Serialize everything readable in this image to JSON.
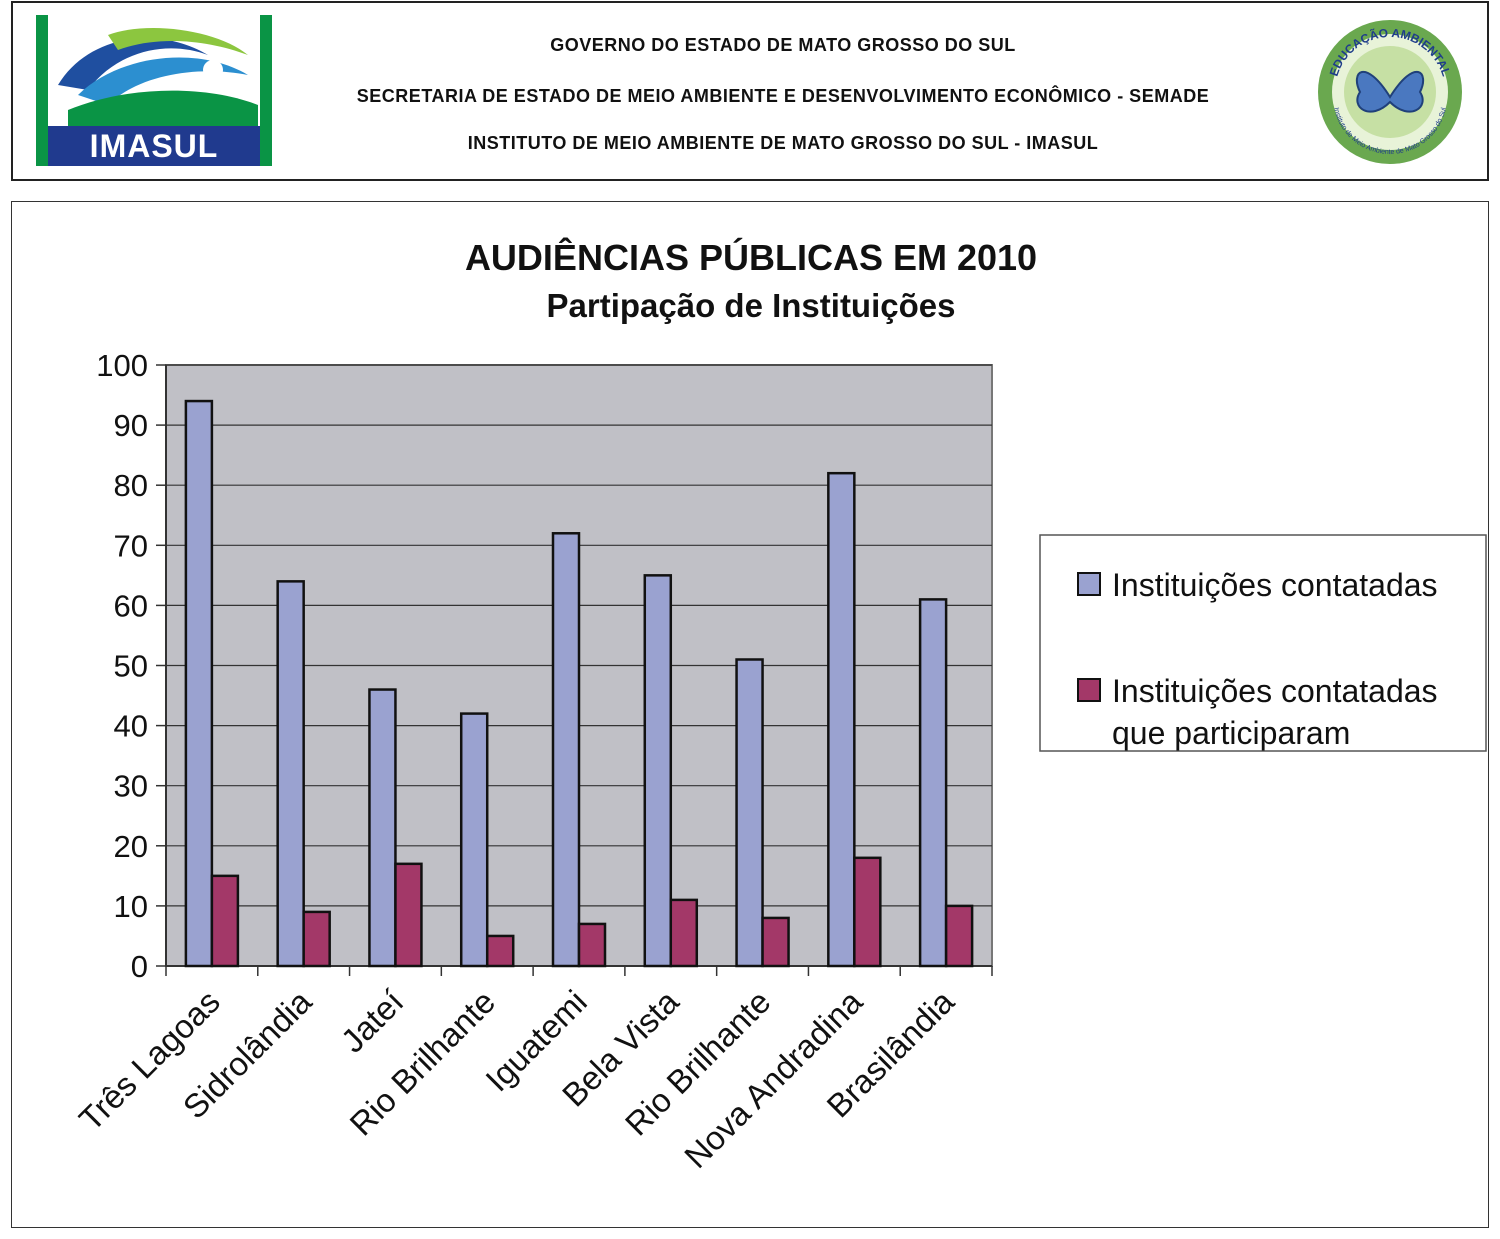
{
  "header": {
    "line1": "GOVERNO DO ESTADO DE MATO GROSSO DO SUL",
    "line2": "SECRETARIA DE ESTADO DE MEIO AMBIENTE E DESENVOLVIMENTO ECONÔMICO - SEMADE",
    "line3": "INSTITUTO DE MEIO AMBIENTE DE MATO GROSSO DO SUL - IMASUL",
    "logo_left_text": "IMASUL",
    "logo_right_text_top": "EDUCAÇÃO AMBIENTAL",
    "logo_right_text_bottom": "Instituto de Meio Ambiente de Mato Grosso do Sul"
  },
  "colors": {
    "series1": "#9aa2d0",
    "series2": "#a33868",
    "plot_bg": "#c0c0c6",
    "imasul_green": "#0a9445",
    "imasul_blue": "#203a8e"
  },
  "chart_data": {
    "type": "bar",
    "title": "AUDIÊNCIAS PÚBLICAS EM 2010",
    "subtitle": "Partipação de Instituições",
    "categories": [
      "Três Lagoas",
      "Sidrolândia",
      "Jateí",
      "Rio Brilhante",
      "Iguatemi",
      "Bela Vista",
      "Rio Brilhante",
      "Nova Andradina",
      "Brasilândia"
    ],
    "series": [
      {
        "name": "Instituições contatadas",
        "values": [
          94,
          64,
          46,
          42,
          72,
          65,
          51,
          82,
          61
        ]
      },
      {
        "name": "Instituições contatadas que participaram",
        "values": [
          15,
          9,
          17,
          5,
          7,
          11,
          8,
          18,
          10
        ]
      }
    ],
    "ylim": [
      0,
      100
    ],
    "yticks": [
      0,
      10,
      20,
      30,
      40,
      50,
      60,
      70,
      80,
      90,
      100
    ],
    "grid": true,
    "legend_position": "right"
  }
}
